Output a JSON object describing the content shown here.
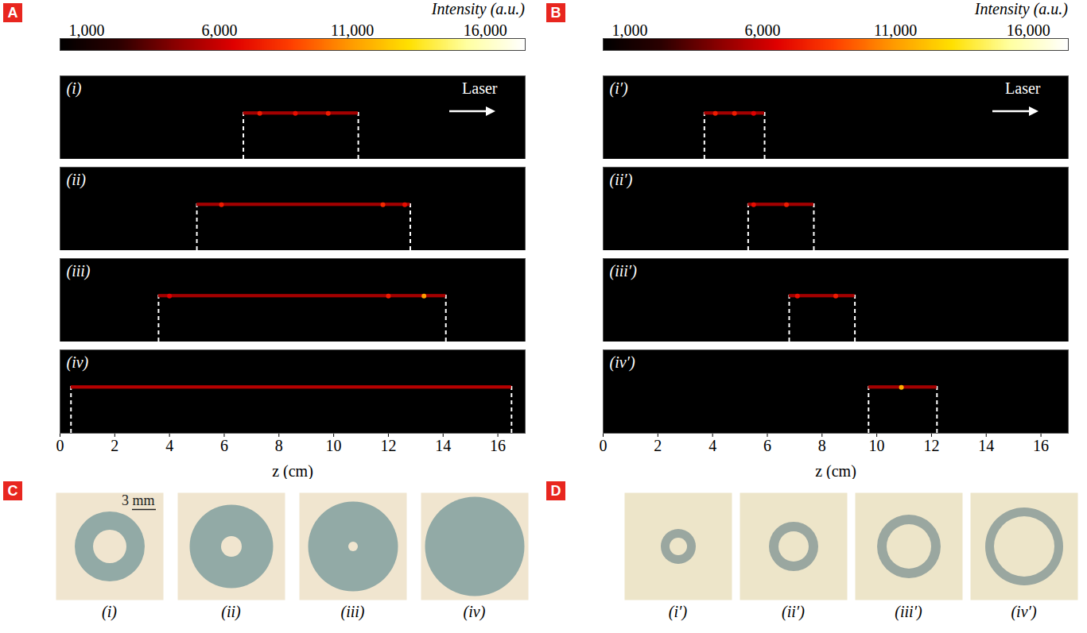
{
  "chart_data": [
    {
      "panel": "A",
      "type": "intensity_strips",
      "colorbar_title": "Intensity (a.u.)",
      "clim": [
        0,
        17500
      ],
      "cticks": [
        {
          "value": 1000,
          "label": "1,000"
        },
        {
          "value": 6000,
          "label": "6,000"
        },
        {
          "value": 11000,
          "label": "11,000"
        },
        {
          "value": 16000,
          "label": "16,000"
        }
      ],
      "xlabel": "z (cm)",
      "xlim": [
        0,
        17
      ],
      "xticks": [
        0,
        2,
        4,
        6,
        8,
        10,
        12,
        14,
        16
      ],
      "annotation": "Laser",
      "strips": [
        {
          "label": "(i)",
          "start": 6.7,
          "end": 10.9,
          "intensity": 5000,
          "hot_spots": [
            {
              "z": 7.3,
              "intensity": 7500
            },
            {
              "z": 8.6,
              "intensity": 7000
            },
            {
              "z": 9.8,
              "intensity": 7500
            }
          ]
        },
        {
          "label": "(ii)",
          "start": 5.0,
          "end": 12.8,
          "intensity": 5000,
          "hot_spots": [
            {
              "z": 5.9,
              "intensity": 7500
            },
            {
              "z": 11.8,
              "intensity": 8000
            },
            {
              "z": 12.6,
              "intensity": 7000
            }
          ]
        },
        {
          "label": "(iii)",
          "start": 3.6,
          "end": 14.1,
          "intensity": 5000,
          "hot_spots": [
            {
              "z": 4.0,
              "intensity": 6500
            },
            {
              "z": 12.0,
              "intensity": 7500
            },
            {
              "z": 13.3,
              "intensity": 11000
            }
          ]
        },
        {
          "label": "(iv)",
          "start": 0.4,
          "end": 16.5,
          "intensity": 5500,
          "hot_spots": []
        }
      ]
    },
    {
      "panel": "B",
      "type": "intensity_strips",
      "colorbar_title": "Intensity (a.u.)",
      "clim": [
        0,
        17500
      ],
      "cticks": [
        {
          "value": 1000,
          "label": "1,000"
        },
        {
          "value": 6000,
          "label": "6,000"
        },
        {
          "value": 11000,
          "label": "11,000"
        },
        {
          "value": 16000,
          "label": "16,000"
        }
      ],
      "xlabel": "z (cm)",
      "xlim": [
        0,
        17
      ],
      "xticks": [
        0,
        2,
        4,
        6,
        8,
        10,
        12,
        14,
        16
      ],
      "annotation": "Laser",
      "strips": [
        {
          "label": "(i′)",
          "start": 3.7,
          "end": 5.9,
          "intensity": 5000,
          "hot_spots": [
            {
              "z": 4.1,
              "intensity": 7500
            },
            {
              "z": 4.8,
              "intensity": 7500
            },
            {
              "z": 5.5,
              "intensity": 6500
            }
          ]
        },
        {
          "label": "(ii′)",
          "start": 5.3,
          "end": 7.7,
          "intensity": 5000,
          "hot_spots": [
            {
              "z": 5.5,
              "intensity": 7000
            },
            {
              "z": 6.7,
              "intensity": 7500
            }
          ]
        },
        {
          "label": "(iii′)",
          "start": 6.8,
          "end": 9.2,
          "intensity": 5000,
          "hot_spots": [
            {
              "z": 7.1,
              "intensity": 7000
            },
            {
              "z": 8.5,
              "intensity": 7500
            }
          ]
        },
        {
          "label": "(iv′)",
          "start": 9.7,
          "end": 12.2,
          "intensity": 5000,
          "hot_spots": [
            {
              "z": 10.9,
              "intensity": 11500
            }
          ]
        }
      ]
    },
    {
      "panel": "C",
      "type": "rings",
      "color": "#92aaa6",
      "scale_bar": {
        "value": 3,
        "label": "3 mm"
      },
      "categories": [
        "(i)",
        "(ii)",
        "(iii)",
        "(iv)"
      ],
      "outer_diameter": [
        8.8,
        10.5,
        11.3,
        12.5
      ],
      "inner_diameter": [
        4.2,
        2.6,
        1.2,
        0
      ]
    },
    {
      "panel": "D",
      "type": "rings",
      "color": "#9aa7a0",
      "categories": [
        "(i′)",
        "(ii′)",
        "(iii′)",
        "(iv′)"
      ],
      "outer_diameter": [
        4.4,
        6.2,
        8.0,
        9.8
      ],
      "inner_diameter": [
        2.2,
        3.8,
        5.6,
        7.6
      ]
    }
  ]
}
